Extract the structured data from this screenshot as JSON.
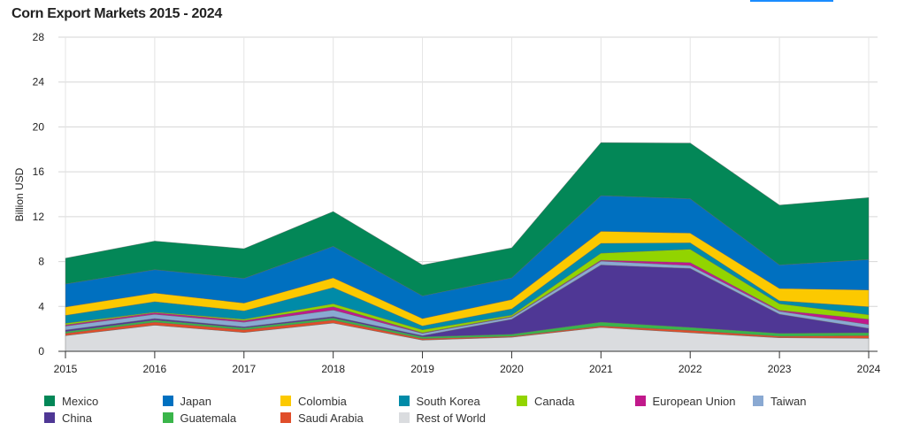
{
  "chart_data": {
    "type": "area",
    "stacked": true,
    "title": "Corn Export Markets 2015 - 2024",
    "xlabel": "",
    "ylabel": "Billion USD",
    "ylim": [
      0,
      28
    ],
    "yticks": [
      "0",
      "4",
      "8",
      "12",
      "16",
      "20",
      "24",
      "28"
    ],
    "x": [
      "2015",
      "2016",
      "2017",
      "2018",
      "2019",
      "2020",
      "2021",
      "2022",
      "2023",
      "2024"
    ],
    "grid": true,
    "legend_position": "bottom",
    "series": [
      {
        "name": "Rest of World",
        "color": "#dadcdf",
        "values": [
          1.4,
          2.33,
          1.68,
          2.52,
          1.0,
          1.26,
          2.13,
          1.66,
          1.21,
          1.16
        ]
      },
      {
        "name": "Saudi Arabia",
        "color": "#e04e2a",
        "values": [
          0.2,
          0.27,
          0.24,
          0.26,
          0.13,
          0.08,
          0.13,
          0.21,
          0.13,
          0.24
        ]
      },
      {
        "name": "Guatemala",
        "color": "#3ab54a",
        "values": [
          0.15,
          0.18,
          0.16,
          0.19,
          0.16,
          0.18,
          0.34,
          0.26,
          0.26,
          0.26
        ]
      },
      {
        "name": "China",
        "color": "#4f3795",
        "values": [
          0.15,
          0.14,
          0.1,
          0.13,
          0.11,
          1.34,
          5.1,
          5.26,
          1.71,
          0.39
        ]
      },
      {
        "name": "Taiwan",
        "color": "#8aa9d2",
        "values": [
          0.35,
          0.38,
          0.42,
          0.58,
          0.2,
          0.19,
          0.34,
          0.26,
          0.26,
          0.34
        ]
      },
      {
        "name": "European Union",
        "color": "#c1198b",
        "values": [
          0.1,
          0.14,
          0.14,
          0.29,
          0.05,
          0.05,
          0.08,
          0.26,
          0.08,
          0.47
        ]
      },
      {
        "name": "Canada",
        "color": "#92d400",
        "values": [
          0.15,
          0.06,
          0.12,
          0.27,
          0.27,
          0.13,
          0.63,
          1.19,
          0.59,
          0.4
        ]
      },
      {
        "name": "South Korea",
        "color": "#008ba8",
        "values": [
          0.7,
          0.92,
          0.74,
          1.44,
          0.34,
          0.55,
          0.87,
          0.57,
          0.26,
          0.71
        ]
      },
      {
        "name": "Colombia",
        "color": "#fcc900",
        "values": [
          0.75,
          0.78,
          0.7,
          0.87,
          0.66,
          0.84,
          1.08,
          0.87,
          1.1,
          1.5
        ]
      },
      {
        "name": "Japan",
        "color": "#0070c0",
        "values": [
          2.05,
          2.08,
          2.2,
          2.81,
          2.02,
          1.93,
          3.18,
          3.06,
          2.1,
          2.71
        ]
      },
      {
        "name": "Mexico",
        "color": "#038757",
        "values": [
          2.3,
          2.55,
          2.65,
          3.1,
          2.76,
          2.67,
          4.72,
          4.96,
          5.33,
          5.52
        ]
      }
    ],
    "legend_order": [
      "Mexico",
      "Japan",
      "Colombia",
      "South Korea",
      "Canada",
      "European Union",
      "Taiwan",
      "China",
      "Guatemala",
      "Saudi Arabia",
      "Rest of World"
    ]
  }
}
